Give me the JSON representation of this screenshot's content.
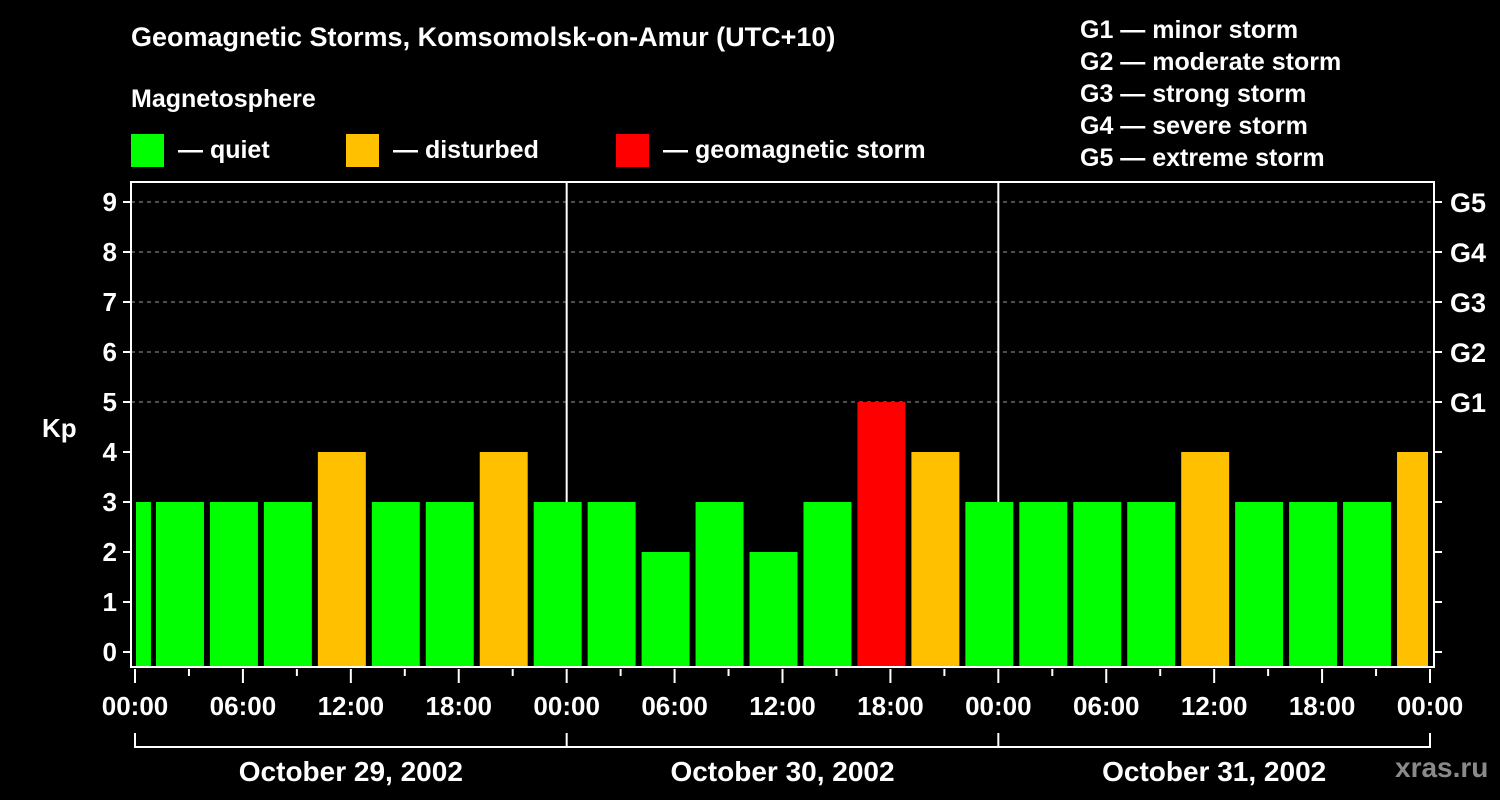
{
  "header": {
    "title": "Geomagnetic Storms, Komsomolsk-on-Amur (UTC+10)",
    "subtitle": "Magnetosphere"
  },
  "legend": [
    {
      "label": "— quiet",
      "color": "#00ff00"
    },
    {
      "label": "— disturbed",
      "color": "#ffc000"
    },
    {
      "label": "— geomagnetic storm",
      "color": "#ff0000"
    }
  ],
  "g_scale": [
    "G1 — minor storm",
    "G2 — moderate storm",
    "G3 — strong storm",
    "G4 — severe storm",
    "G5 — extreme storm"
  ],
  "watermark": "xras.ru",
  "chart_data": {
    "type": "bar",
    "title": "Geomagnetic Storms, Komsomolsk-on-Amur (UTC+10)",
    "ylabel": "Kp",
    "xlabel": "",
    "ylim": [
      0,
      9
    ],
    "yticks": [
      0,
      1,
      2,
      3,
      4,
      5,
      6,
      7,
      8,
      9
    ],
    "right_axis_labels": [
      {
        "kp": 5,
        "label": "G1"
      },
      {
        "kp": 6,
        "label": "G2"
      },
      {
        "kp": 7,
        "label": "G3"
      },
      {
        "kp": 8,
        "label": "G4"
      },
      {
        "kp": 9,
        "label": "G5"
      }
    ],
    "grid": "dashed horizontal at Kp 5-9",
    "xticks": [
      "00:00",
      "06:00",
      "12:00",
      "18:00",
      "00:00",
      "06:00",
      "12:00",
      "18:00",
      "00:00",
      "06:00",
      "12:00",
      "18:00",
      "00:00"
    ],
    "days": [
      "October 29, 2002",
      "October 30, 2002",
      "October 31, 2002"
    ],
    "bar_interval_hours": 3,
    "bars": [
      {
        "start_h": 0,
        "end_h": 1,
        "kp": 3,
        "level": "quiet"
      },
      {
        "start_h": 1,
        "end_h": 4,
        "kp": 3,
        "level": "quiet"
      },
      {
        "start_h": 4,
        "end_h": 7,
        "kp": 3,
        "level": "quiet"
      },
      {
        "start_h": 7,
        "end_h": 10,
        "kp": 3,
        "level": "quiet"
      },
      {
        "start_h": 10,
        "end_h": 13,
        "kp": 4,
        "level": "disturbed"
      },
      {
        "start_h": 13,
        "end_h": 16,
        "kp": 3,
        "level": "quiet"
      },
      {
        "start_h": 16,
        "end_h": 19,
        "kp": 3,
        "level": "quiet"
      },
      {
        "start_h": 19,
        "end_h": 22,
        "kp": 4,
        "level": "disturbed"
      },
      {
        "start_h": 22,
        "end_h": 25,
        "kp": 3,
        "level": "quiet"
      },
      {
        "start_h": 25,
        "end_h": 28,
        "kp": 3,
        "level": "quiet"
      },
      {
        "start_h": 28,
        "end_h": 31,
        "kp": 2,
        "level": "quiet"
      },
      {
        "start_h": 31,
        "end_h": 34,
        "kp": 3,
        "level": "quiet"
      },
      {
        "start_h": 34,
        "end_h": 37,
        "kp": 2,
        "level": "quiet"
      },
      {
        "start_h": 37,
        "end_h": 40,
        "kp": 3,
        "level": "quiet"
      },
      {
        "start_h": 40,
        "end_h": 43,
        "kp": 5,
        "level": "storm"
      },
      {
        "start_h": 43,
        "end_h": 46,
        "kp": 4,
        "level": "disturbed"
      },
      {
        "start_h": 46,
        "end_h": 49,
        "kp": 3,
        "level": "quiet"
      },
      {
        "start_h": 49,
        "end_h": 52,
        "kp": 3,
        "level": "quiet"
      },
      {
        "start_h": 52,
        "end_h": 55,
        "kp": 3,
        "level": "quiet"
      },
      {
        "start_h": 55,
        "end_h": 58,
        "kp": 3,
        "level": "quiet"
      },
      {
        "start_h": 58,
        "end_h": 61,
        "kp": 4,
        "level": "disturbed"
      },
      {
        "start_h": 61,
        "end_h": 64,
        "kp": 3,
        "level": "quiet"
      },
      {
        "start_h": 64,
        "end_h": 67,
        "kp": 3,
        "level": "quiet"
      },
      {
        "start_h": 67,
        "end_h": 70,
        "kp": 3,
        "level": "quiet"
      },
      {
        "start_h": 70,
        "end_h": 72,
        "kp": 4,
        "level": "disturbed"
      }
    ],
    "colors": {
      "quiet": "#00ff00",
      "disturbed": "#ffc000",
      "storm": "#ff0000"
    }
  }
}
